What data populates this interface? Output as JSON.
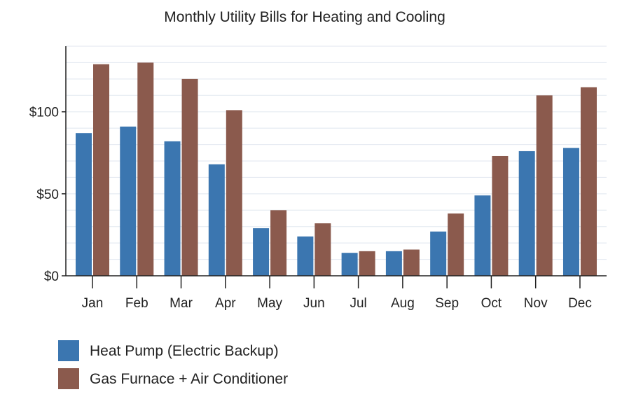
{
  "chart_data": {
    "type": "bar",
    "title": "Monthly Utility Bills for Heating and Cooling",
    "xlabel": "",
    "ylabel": "",
    "categories": [
      "Jan",
      "Feb",
      "Mar",
      "Apr",
      "May",
      "Jun",
      "Jul",
      "Aug",
      "Sep",
      "Oct",
      "Nov",
      "Dec"
    ],
    "series": [
      {
        "name": "Heat Pump (Electric Backup)",
        "color": "#3b76b0",
        "values": [
          87,
          91,
          82,
          68,
          29,
          24,
          14,
          15,
          27,
          49,
          76,
          78
        ]
      },
      {
        "name": "Gas Furnace + Air Conditioner",
        "color": "#8b5a4d",
        "values": [
          129,
          130,
          120,
          101,
          40,
          32,
          15,
          16,
          38,
          73,
          110,
          115
        ]
      }
    ],
    "ylim": [
      0,
      140
    ],
    "yticks": [
      0,
      50,
      100
    ],
    "ytick_labels": [
      "$0",
      "$50",
      "$100"
    ],
    "grid": "horizontal",
    "legend_position": "bottom-left"
  }
}
